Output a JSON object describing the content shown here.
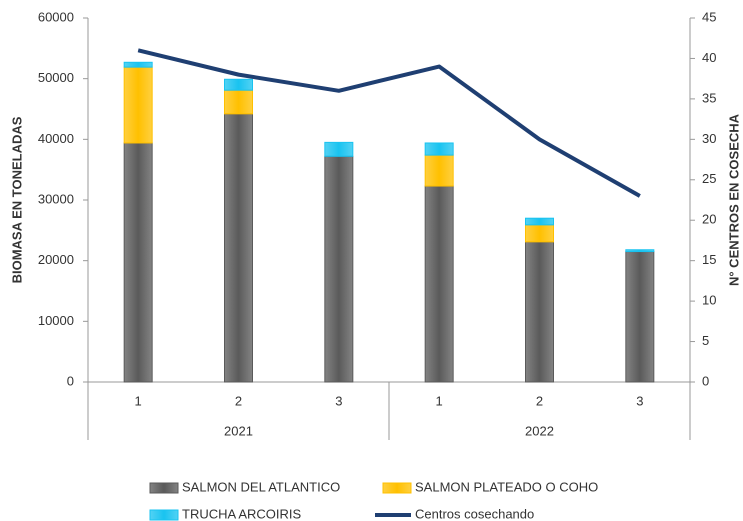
{
  "chart_data": {
    "type": "bar-line",
    "categories": [
      "1",
      "2",
      "3",
      "1",
      "2",
      "3"
    ],
    "groups": [
      "2021",
      "2022"
    ],
    "ylabel": "BIOMASA EN TONELADAS",
    "y2label": "N° CENTROS EN COSECHA",
    "ylim": [
      0,
      60000
    ],
    "yticks": [
      0,
      10000,
      20000,
      30000,
      40000,
      50000,
      60000
    ],
    "y2lim": [
      0,
      45
    ],
    "y2ticks": [
      0,
      5,
      10,
      15,
      20,
      25,
      30,
      35,
      40,
      45
    ],
    "series": [
      {
        "name": "SALMON DEL ATLANTICO",
        "color": "#5a5a5a",
        "values": [
          39400,
          44200,
          37200,
          32300,
          23100,
          21500
        ]
      },
      {
        "name": "SALMON PLATEADO O COHO",
        "color": "#ffc000",
        "values": [
          12500,
          3900,
          0,
          5100,
          2800,
          0
        ]
      },
      {
        "name": "TRUCHA ARCOIRIS",
        "color": "#19c3f0",
        "values": [
          800,
          1800,
          2300,
          2000,
          1100,
          300
        ]
      },
      {
        "name": "Centros cosechando",
        "color": "#1f3f72",
        "axis": "y2",
        "values": [
          41,
          38,
          36,
          39,
          30,
          23
        ]
      }
    ]
  }
}
